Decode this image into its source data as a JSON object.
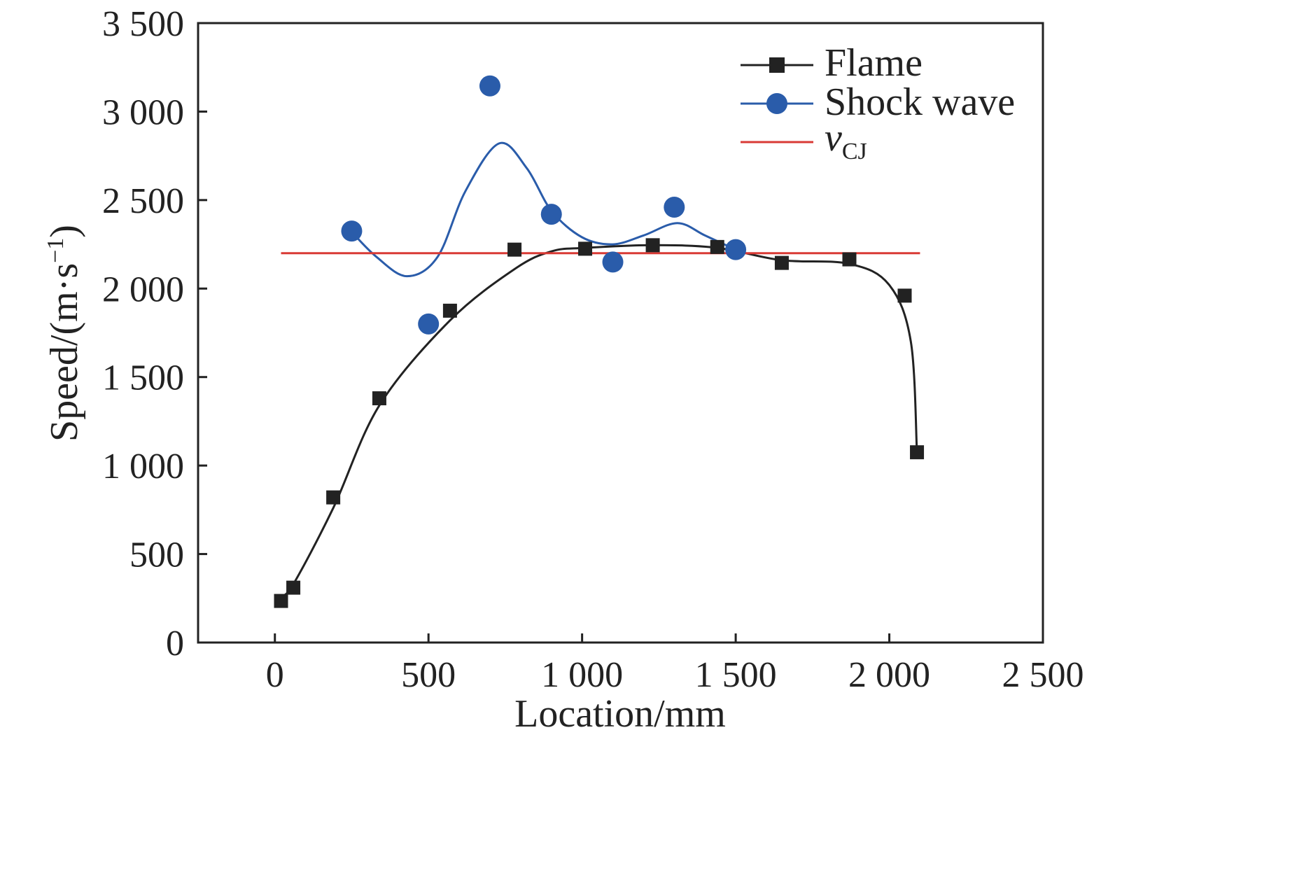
{
  "chart_data": {
    "type": "scatter",
    "title": "",
    "xlabel": "Location/mm",
    "ylabel_main": "Speed/(m·s",
    "ylabel_sup": "−1",
    "ylabel_close": ")",
    "xlim": [
      -250,
      2500
    ],
    "ylim": [
      0,
      3500
    ],
    "x_ticks": [
      0,
      500,
      1000,
      1500,
      2000,
      2500
    ],
    "x_tick_labels": [
      "0",
      "500",
      "1 000",
      "1 500",
      "2 000",
      "2 500"
    ],
    "y_ticks": [
      0,
      500,
      1000,
      1500,
      2000,
      2500,
      3000,
      3500
    ],
    "y_tick_labels": [
      "0",
      "500",
      "1 000",
      "1 500",
      "2 000",
      "2 500",
      "3 000",
      "3 500"
    ],
    "grid": false,
    "legend_position": "top-right",
    "series": [
      {
        "name": "Flame",
        "marker": "square",
        "color": "#222222",
        "x": [
          20,
          60,
          190,
          340,
          570,
          780,
          1010,
          1230,
          1440,
          1650,
          1870,
          2050,
          2090
        ],
        "y": [
          235,
          310,
          820,
          1380,
          1875,
          2220,
          2225,
          2245,
          2235,
          2145,
          2165,
          1960,
          1075
        ],
        "fit_x": [
          20,
          60,
          190,
          340,
          570,
          780,
          900,
          1010,
          1230,
          1440,
          1650,
          1870,
          2000,
          2070,
          2090
        ],
        "fit_y": [
          260,
          330,
          760,
          1340,
          1820,
          2110,
          2210,
          2230,
          2245,
          2230,
          2160,
          2140,
          2020,
          1700,
          1075
        ]
      },
      {
        "name": "Shock wave",
        "marker": "circle",
        "color": "#2a5caa",
        "x": [
          250,
          500,
          700,
          900,
          1100,
          1300,
          1500
        ],
        "y": [
          2325,
          1800,
          3145,
          2420,
          2150,
          2460,
          2220
        ],
        "fit_x": [
          250,
          330,
          430,
          530,
          620,
          730,
          820,
          900,
          1000,
          1100,
          1200,
          1310,
          1400,
          1500
        ],
        "fit_y": [
          2320,
          2180,
          2070,
          2180,
          2550,
          2820,
          2680,
          2440,
          2290,
          2250,
          2300,
          2370,
          2300,
          2220
        ]
      },
      {
        "name": "v",
        "name_sub": "CJ",
        "type": "hline",
        "color": "#d93a35",
        "x": [
          20,
          2100
        ],
        "y": [
          2200,
          2200
        ]
      }
    ]
  }
}
